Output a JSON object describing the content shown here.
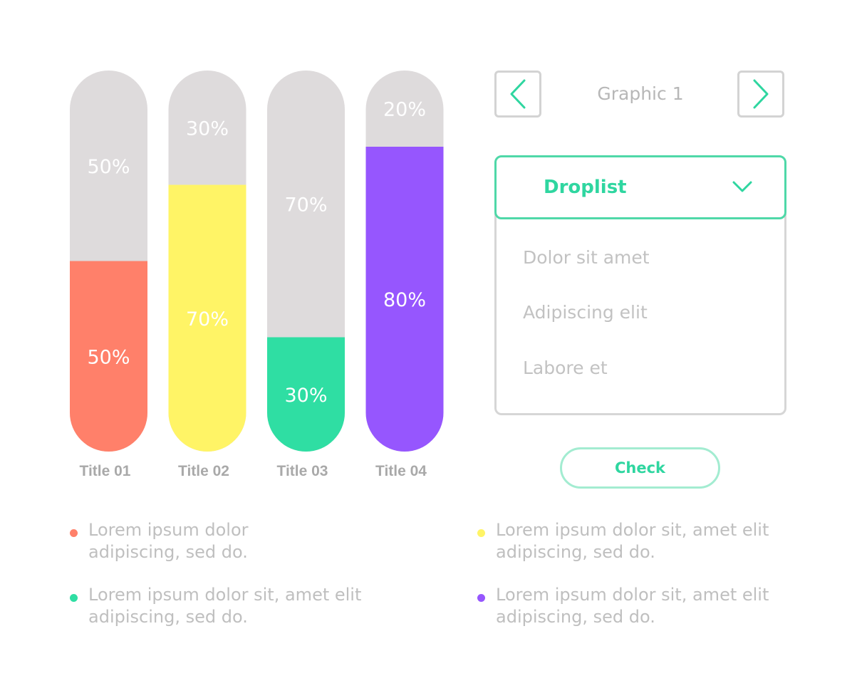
{
  "chart_data": {
    "type": "bar",
    "stacked": true,
    "categories": [
      "Title 01",
      "Title 02",
      "Title 03",
      "Title 04"
    ],
    "ylim": [
      0,
      100
    ],
    "series": [
      {
        "values": [
          50,
          70,
          30,
          80
        ],
        "labels": [
          "50%",
          "70%",
          "30%",
          "80%"
        ],
        "colors": [
          "#ff806a",
          "#fff466",
          "#2fdea3",
          "#9656fe"
        ]
      },
      {
        "values": [
          50,
          30,
          70,
          20
        ],
        "labels": [
          "50%",
          "30%",
          "70%",
          "20%"
        ],
        "color": "#dedbdc"
      }
    ]
  },
  "nav": {
    "title": "Graphic 1",
    "prev_icon": "chevron-left-icon",
    "next_icon": "chevron-right-icon",
    "accent_color": "#2fd6a0"
  },
  "droplist": {
    "label": "Droplist",
    "icon": "chevron-down-icon",
    "options": [
      "Dolor sit amet",
      "Adipiscing elit",
      "Labore et"
    ]
  },
  "check_button": {
    "label": "Check"
  },
  "legend": [
    {
      "text1": "Lorem ipsum dolor",
      "text2": "adipiscing, sed do.",
      "color": "#ff806a"
    },
    {
      "text1": "Lorem ipsum dolor sit, amet elit",
      "text2": "adipiscing, sed do.",
      "color": "#fff466"
    },
    {
      "text1": "Lorem ipsum dolor sit, amet elit",
      "text2": "adipiscing, sed do.",
      "color": "#2fdea3"
    },
    {
      "text1": "Lorem ipsum dolor sit, amet elit",
      "text2": "adipiscing, sed do.",
      "color": "#9656fe"
    }
  ]
}
